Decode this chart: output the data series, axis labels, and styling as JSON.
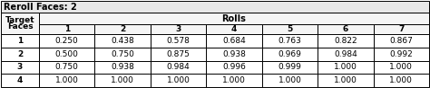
{
  "title": "Reroll Faces: 2",
  "col_header_top": "Rolls",
  "col_header_sub": [
    "1",
    "2",
    "3",
    "4",
    "5",
    "6",
    "7"
  ],
  "row_header_lines": [
    "Target",
    "Faces"
  ],
  "row_labels": [
    "1",
    "2",
    "3",
    "4"
  ],
  "table_data": [
    [
      0.25,
      0.438,
      0.578,
      0.684,
      0.763,
      0.822,
      0.867
    ],
    [
      0.5,
      0.75,
      0.875,
      0.938,
      0.969,
      0.984,
      0.992
    ],
    [
      0.75,
      0.938,
      0.984,
      0.996,
      0.999,
      1.0,
      1.0
    ],
    [
      1.0,
      1.0,
      1.0,
      1.0,
      1.0,
      1.0,
      1.0
    ]
  ],
  "bg_title": "#e8e8e8",
  "bg_header": "#f5f5f5",
  "bg_white": "#ffffff",
  "border_color": "#000000",
  "text_color": "#000000",
  "font_size": 6.5,
  "title_font_size": 7.0,
  "figw": 4.74,
  "figh": 0.98,
  "dpi": 100
}
